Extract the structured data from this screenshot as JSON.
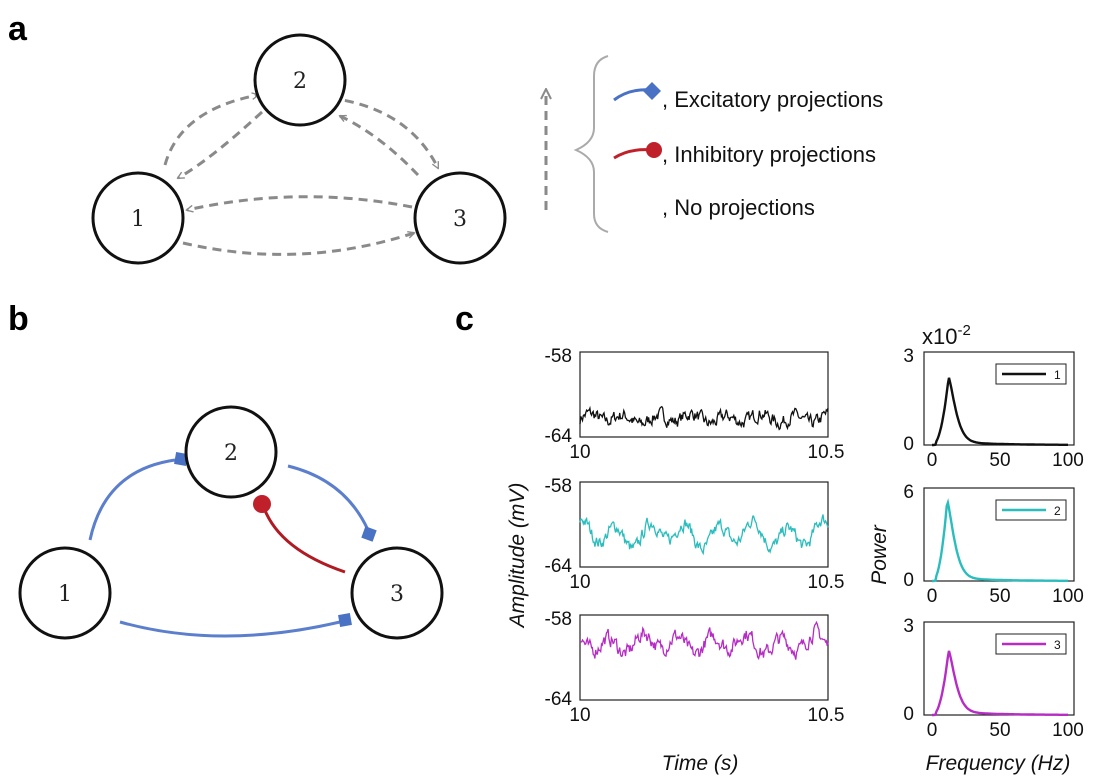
{
  "panels": {
    "a": {
      "letter": "a",
      "nodes": [
        "1",
        "2",
        "3"
      ],
      "legend": [
        {
          "label": ", Excitatory projections",
          "color": "#4a72c4",
          "marker": "diamond"
        },
        {
          "label": ", Inhibitory projections",
          "color": "#c0202a",
          "marker": "circle"
        },
        {
          "label": ", No projections",
          "color": "#888888",
          "marker": "dashed-arrow"
        }
      ]
    },
    "b": {
      "letter": "b",
      "nodes": [
        "1",
        "2",
        "3"
      ],
      "edges": [
        {
          "from": "1",
          "to": "2",
          "type": "excitatory"
        },
        {
          "from": "2",
          "to": "3",
          "type": "excitatory"
        },
        {
          "from": "1",
          "to": "3",
          "type": "excitatory"
        },
        {
          "from": "3",
          "to": "2",
          "type": "inhibitory"
        }
      ]
    },
    "c": {
      "letter": "c",
      "time_axis_label": "Time (s)",
      "amplitude_axis_label": "Amplitude (mV)",
      "frequency_axis_label": "Frequency (Hz)",
      "power_axis_label": "Power",
      "power_scale_label": "x10",
      "power_scale_exp": "-2"
    }
  },
  "chart_data": [
    {
      "type": "line",
      "name": "trace-1",
      "color": "#111111",
      "x_ticks": [
        "10",
        "10.5"
      ],
      "y_ticks": [
        "-58",
        "-64"
      ],
      "xlim": [
        10,
        10.5
      ],
      "ylim": [
        -64,
        -58
      ],
      "mean": -62.7,
      "noise": 0.35,
      "osc": 0.4
    },
    {
      "type": "line",
      "name": "trace-2",
      "color": "#2bbdbd",
      "x_ticks": [
        "10",
        "10.5"
      ],
      "y_ticks": [
        "-58",
        "-64"
      ],
      "xlim": [
        10,
        10.5
      ],
      "ylim": [
        -64,
        -58
      ],
      "mean": -61.7,
      "noise": 0.35,
      "osc": 1.1
    },
    {
      "type": "line",
      "name": "trace-3",
      "color": "#b62cc4",
      "x_ticks": [
        "10",
        "10.5"
      ],
      "y_ticks": [
        "-58",
        "-64"
      ],
      "xlim": [
        10,
        10.5
      ],
      "ylim": [
        -64,
        -58
      ],
      "mean": -60.0,
      "noise": 0.4,
      "osc": 0.8
    },
    {
      "type": "line",
      "name": "spectrum-1",
      "legend": "1",
      "color": "#111111",
      "x_ticks": [
        "0",
        "50",
        "100"
      ],
      "y_ticks": [
        "3",
        "0"
      ],
      "xlim": [
        0,
        100
      ],
      "ylim": [
        0,
        3
      ],
      "peak_x": 12,
      "peak_y": 2.1
    },
    {
      "type": "line",
      "name": "spectrum-2",
      "legend": "2",
      "color": "#2bbdbd",
      "x_ticks": [
        "0",
        "50",
        "100"
      ],
      "y_ticks": [
        "6",
        "0"
      ],
      "xlim": [
        0,
        100
      ],
      "ylim": [
        0,
        6
      ],
      "peak_x": 11,
      "peak_y": 5.0
    },
    {
      "type": "line",
      "name": "spectrum-3",
      "legend": "3",
      "color": "#b62cc4",
      "x_ticks": [
        "0",
        "50",
        "100"
      ],
      "y_ticks": [
        "3",
        "0"
      ],
      "xlim": [
        0,
        100
      ],
      "ylim": [
        0,
        3
      ],
      "peak_x": 12,
      "peak_y": 2.0
    }
  ]
}
